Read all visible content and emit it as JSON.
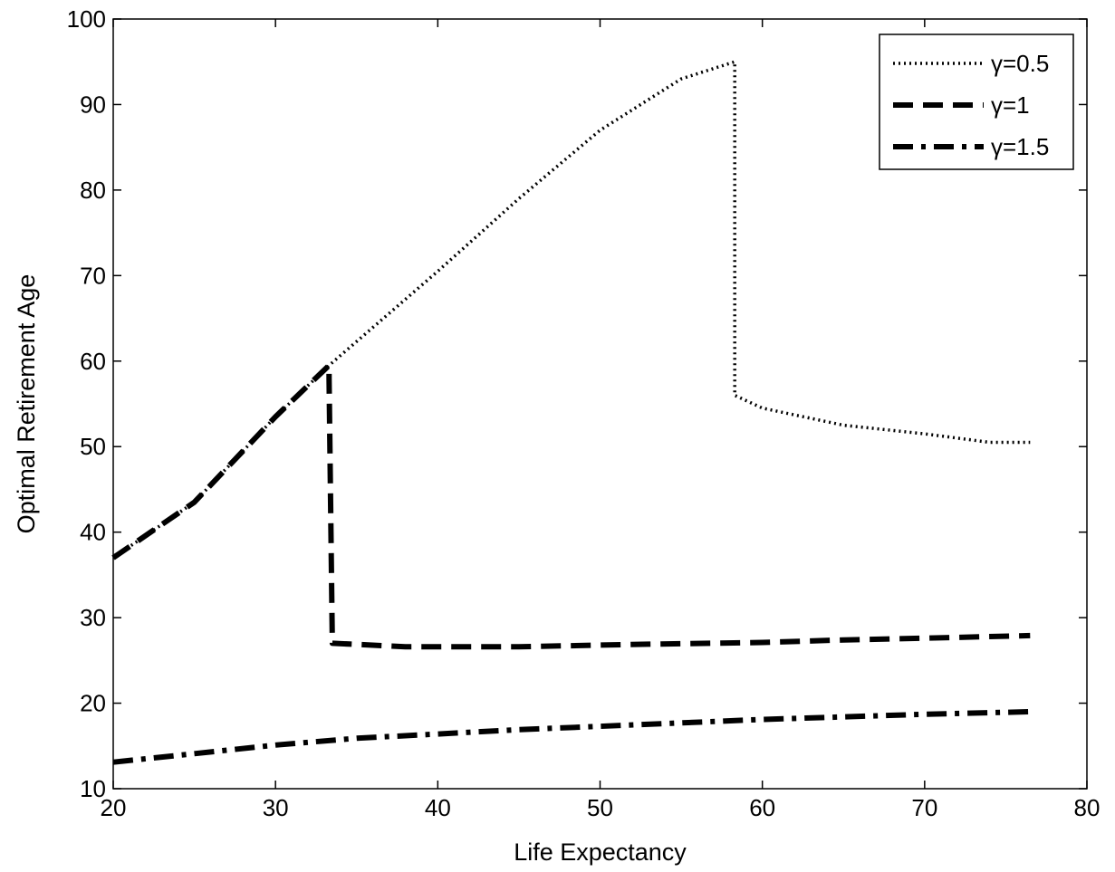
{
  "chart_data": {
    "type": "line",
    "title": "",
    "xlabel": "Life Expectancy",
    "ylabel": "Optimal Retirement Age",
    "xlim": [
      20,
      80
    ],
    "ylim": [
      10,
      100
    ],
    "xticks": [
      20,
      30,
      40,
      50,
      60,
      70,
      80
    ],
    "yticks": [
      10,
      20,
      30,
      40,
      50,
      60,
      70,
      80,
      90,
      100
    ],
    "grid": false,
    "legend_position": "top-right",
    "series": [
      {
        "name": "γ=0.5",
        "style": "dotted",
        "color": "#000000",
        "x": [
          20,
          25,
          30,
          33.3,
          40,
          45,
          50,
          55,
          58.3,
          58.3,
          60,
          65,
          70,
          74,
          76.5
        ],
        "y": [
          37,
          43.5,
          53.5,
          59.5,
          70.5,
          79,
          87,
          93,
          95,
          56,
          54.5,
          52.5,
          51.5,
          50.5,
          50.5
        ]
      },
      {
        "name": "γ=1",
        "style": "dashed",
        "color": "#000000",
        "x": [
          20,
          25,
          30,
          33.3,
          33.3,
          33.5,
          38,
          45,
          53,
          60,
          65,
          70,
          76.5
        ],
        "y": [
          37,
          43.5,
          53.5,
          59.5,
          58,
          27,
          26.6,
          26.6,
          26.9,
          27.1,
          27.4,
          27.6,
          27.9
        ]
      },
      {
        "name": "γ=1.5",
        "style": "dashdot",
        "color": "#000000",
        "x": [
          20,
          25,
          30,
          35,
          40,
          45,
          50,
          55,
          60,
          65,
          70,
          76.5
        ],
        "y": [
          13.1,
          14.1,
          15.1,
          15.9,
          16.4,
          16.9,
          17.3,
          17.7,
          18.1,
          18.4,
          18.7,
          19
        ]
      }
    ]
  }
}
